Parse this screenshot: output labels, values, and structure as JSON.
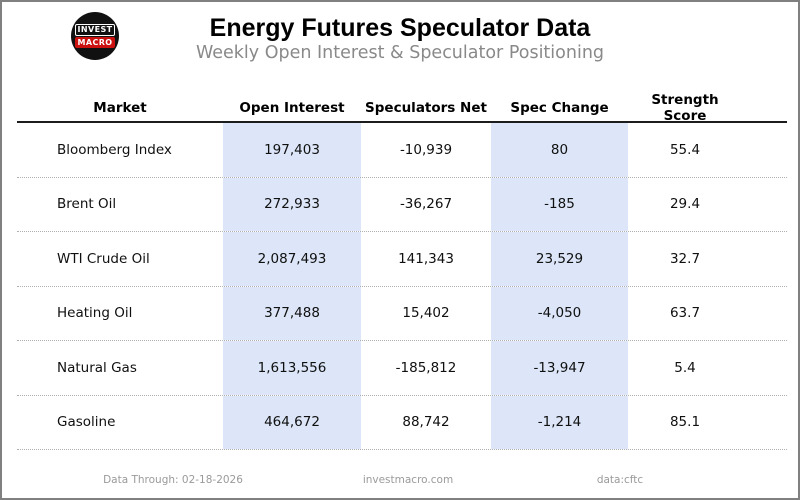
{
  "header": {
    "title": "Energy Futures Speculator Data",
    "subtitle": "Weekly Open Interest & Speculator Positioning",
    "logo": {
      "line1": "INVEST",
      "line2": "MACRO"
    }
  },
  "table": {
    "columns": [
      "Market",
      "Open Interest",
      "Speculators Net",
      "Spec Change",
      "Strength Score"
    ],
    "rows": [
      {
        "market": "Bloomberg Index",
        "open_interest": "197,403",
        "speculators_net": "-10,939",
        "spec_change": "80",
        "strength_score": "55.4"
      },
      {
        "market": "Brent Oil",
        "open_interest": "272,933",
        "speculators_net": "-36,267",
        "spec_change": "-185",
        "strength_score": "29.4"
      },
      {
        "market": "WTI Crude Oil",
        "open_interest": "2,087,493",
        "speculators_net": "141,343",
        "spec_change": "23,529",
        "strength_score": "32.7"
      },
      {
        "market": "Heating Oil",
        "open_interest": "377,488",
        "speculators_net": "15,402",
        "spec_change": "-4,050",
        "strength_score": "63.7"
      },
      {
        "market": "Natural Gas",
        "open_interest": "1,613,556",
        "speculators_net": "-185,812",
        "spec_change": "-13,947",
        "strength_score": "5.4"
      },
      {
        "market": "Gasoline",
        "open_interest": "464,672",
        "speculators_net": "88,742",
        "spec_change": "-1,214",
        "strength_score": "85.1"
      }
    ]
  },
  "footer": {
    "data_through": "Data Through: 02-18-2026",
    "website": "investmacro.com",
    "source": "data:cftc"
  },
  "colors": {
    "highlight_column": "#dce6f8",
    "logo_red": "#cc1111",
    "subtitle_gray": "#898989"
  },
  "chart_data": {
    "type": "table",
    "title": "Energy Futures Speculator Data",
    "subtitle": "Weekly Open Interest & Speculator Positioning",
    "columns": [
      "Market",
      "Open Interest",
      "Speculators Net",
      "Spec Change",
      "Strength Score"
    ],
    "rows": [
      [
        "Bloomberg Index",
        197403,
        -10939,
        80,
        55.4
      ],
      [
        "Brent Oil",
        272933,
        -36267,
        -185,
        29.4
      ],
      [
        "WTI Crude Oil",
        2087493,
        141343,
        23529,
        32.7
      ],
      [
        "Heating Oil",
        377488,
        15402,
        -4050,
        63.7
      ],
      [
        "Natural Gas",
        1613556,
        -185812,
        -13947,
        5.4
      ],
      [
        "Gasoline",
        464672,
        88742,
        -1214,
        85.1
      ]
    ],
    "highlighted_columns": [
      "Open Interest",
      "Spec Change"
    ],
    "data_through": "02-18-2026",
    "source": "data:cftc"
  }
}
